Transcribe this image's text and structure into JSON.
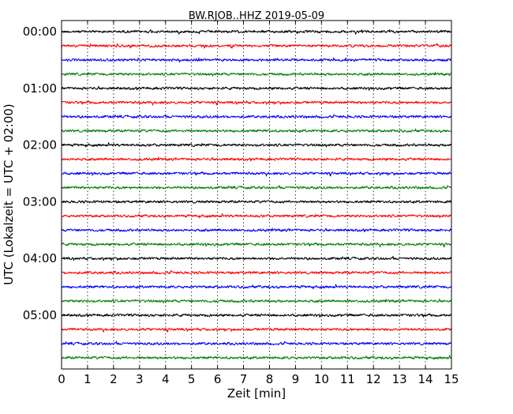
{
  "chart_data": {
    "type": "line",
    "title": "BW.RJOB..HHZ 2019-05-09",
    "xlabel": "Zeit  [min]",
    "ylabel": "UTC (Lokalzeit = UTC + 02:00)",
    "xlim": [
      0,
      15
    ],
    "x_ticks": [
      "0",
      "1",
      "2",
      "3",
      "4",
      "5",
      "6",
      "7",
      "8",
      "9",
      "10",
      "11",
      "12",
      "13",
      "14",
      "15"
    ],
    "y_tick_labels": [
      "00:00",
      "01:00",
      "02:00",
      "03:00",
      "04:00",
      "05:00"
    ],
    "traces_per_hour": 4,
    "trace_count": 24,
    "trace_colors": [
      "#000000",
      "#ff0000",
      "#0000ff",
      "#007f00"
    ],
    "grid": "vertical dotted at each minute",
    "legend": "none"
  }
}
